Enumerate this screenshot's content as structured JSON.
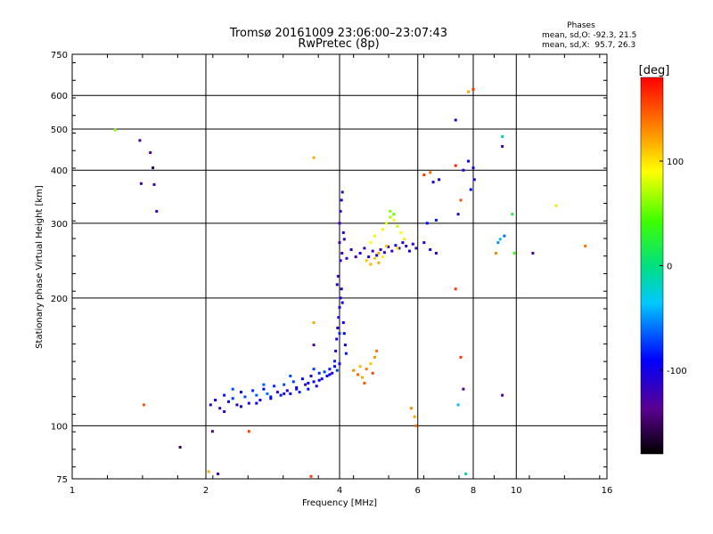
{
  "chart_data": {
    "type": "scatter",
    "title": "Tromsø 20161009 23:06:00–23:07:43",
    "subtitle": "RwPretec (8p)",
    "xlabel": "Frequency [MHz]",
    "ylabel": "Stationary phase Virtual Height [km]",
    "xscale": "log",
    "yscale": "log",
    "xlim": [
      1,
      16
    ],
    "ylim": [
      75,
      750
    ],
    "x_ticks": [
      1,
      2,
      4,
      6,
      8,
      10,
      16
    ],
    "y_ticks": [
      75,
      100,
      200,
      300,
      400,
      500,
      600,
      750
    ],
    "grid": true,
    "stats": {
      "heading": "Phases",
      "line_o": "mean, sd,O: -92.3, 21.5",
      "line_x": "mean, sd,X:  95.7, 26.3"
    },
    "colorbar": {
      "label": "[deg]",
      "min": -180,
      "max": 180,
      "ticks": [
        100,
        0,
        -100
      ],
      "tick_labels": [
        "100",
        "0",
        "-100"
      ]
    },
    "series": [
      {
        "points": [
          [
            2.05,
            112,
            -110
          ],
          [
            2.1,
            115,
            -95
          ],
          [
            2.15,
            110,
            -120
          ],
          [
            2.2,
            118,
            -85
          ],
          [
            2.25,
            114,
            -100
          ],
          [
            2.3,
            116,
            -75
          ],
          [
            2.35,
            112,
            -115
          ],
          [
            2.4,
            120,
            -90
          ],
          [
            2.45,
            117,
            -70
          ],
          [
            2.5,
            113,
            -105
          ],
          [
            2.55,
            121,
            -80
          ],
          [
            2.6,
            118,
            -65
          ],
          [
            2.65,
            115,
            -100
          ],
          [
            2.7,
            122,
            -88
          ],
          [
            2.75,
            119,
            -60
          ],
          [
            2.8,
            116,
            -95
          ],
          [
            2.85,
            124,
            -78
          ],
          [
            2.9,
            120,
            -110
          ],
          [
            2.95,
            118,
            -85
          ],
          [
            3.0,
            125,
            -70
          ],
          [
            3.05,
            121,
            -100
          ],
          [
            3.1,
            119,
            -90
          ],
          [
            3.15,
            127,
            -75
          ],
          [
            3.2,
            123,
            -105
          ],
          [
            3.25,
            120,
            -80
          ],
          [
            3.3,
            129,
            -95
          ],
          [
            3.35,
            125,
            -115
          ],
          [
            3.4,
            122,
            -85
          ],
          [
            3.45,
            131,
            -100
          ],
          [
            3.5,
            127,
            -90
          ],
          [
            3.55,
            124,
            -108
          ],
          [
            3.6,
            133,
            -80
          ],
          [
            3.65,
            129,
            -95
          ],
          [
            3.7,
            134,
            -72
          ],
          [
            3.75,
            131,
            -100
          ],
          [
            3.8,
            136,
            -85
          ],
          [
            3.85,
            133,
            -110
          ],
          [
            3.9,
            138,
            -90
          ],
          [
            3.95,
            135,
            -75
          ],
          [
            4.0,
            140,
            -100
          ],
          [
            2.2,
            108,
            -120
          ],
          [
            2.4,
            111,
            -100
          ],
          [
            2.6,
            113,
            -90
          ],
          [
            2.8,
            117,
            -85
          ],
          [
            3.0,
            119,
            -100
          ],
          [
            3.2,
            122,
            -95
          ],
          [
            3.4,
            126,
            -88
          ],
          [
            3.6,
            128,
            -100
          ],
          [
            3.8,
            132,
            -92
          ],
          [
            2.3,
            122,
            -70
          ],
          [
            2.7,
            125,
            -65
          ],
          [
            3.1,
            131,
            -70
          ],
          [
            3.5,
            136,
            -75
          ],
          [
            3.9,
            142,
            -80
          ],
          [
            3.92,
            150,
            -100
          ],
          [
            3.94,
            160,
            -95
          ],
          [
            3.96,
            170,
            -105
          ],
          [
            3.98,
            180,
            -100
          ],
          [
            4.0,
            190,
            -110
          ],
          [
            4.02,
            200,
            -105
          ],
          [
            4.04,
            210,
            -115
          ],
          [
            4.06,
            195,
            -100
          ],
          [
            4.08,
            175,
            -95
          ],
          [
            4.1,
            165,
            -90
          ],
          [
            4.12,
            155,
            -100
          ],
          [
            4.14,
            148,
            -85
          ],
          [
            3.95,
            215,
            -110
          ],
          [
            3.97,
            225,
            -120
          ],
          [
            4.0,
            165,
            -80
          ],
          [
            4.3,
            135,
            130
          ],
          [
            4.4,
            132,
            145
          ],
          [
            4.5,
            130,
            120
          ],
          [
            4.6,
            136,
            135
          ],
          [
            4.7,
            140,
            110
          ],
          [
            4.8,
            145,
            125
          ],
          [
            4.85,
            150,
            140
          ],
          [
            4.55,
            126,
            150
          ],
          [
            4.45,
            138,
            115
          ],
          [
            4.75,
            133,
            155
          ],
          [
            4.05,
            255,
            -120
          ],
          [
            4.15,
            248,
            -115
          ],
          [
            4.25,
            260,
            -110
          ],
          [
            4.35,
            250,
            -125
          ],
          [
            4.45,
            255,
            -105
          ],
          [
            4.55,
            262,
            -120
          ],
          [
            4.65,
            250,
            -110
          ],
          [
            4.75,
            258,
            -115
          ],
          [
            4.85,
            252,
            -100
          ],
          [
            4.95,
            260,
            -120
          ],
          [
            5.05,
            256,
            -110
          ],
          [
            5.15,
            264,
            -105
          ],
          [
            5.25,
            258,
            -115
          ],
          [
            5.35,
            266,
            -100
          ],
          [
            5.45,
            262,
            -110
          ],
          [
            5.55,
            270,
            -105
          ],
          [
            5.65,
            265,
            -115
          ],
          [
            5.75,
            258,
            -100
          ],
          [
            5.85,
            268,
            -110
          ],
          [
            5.95,
            262,
            -120
          ],
          [
            4.0,
            300,
            -120
          ],
          [
            4.02,
            320,
            -115
          ],
          [
            4.04,
            340,
            -110
          ],
          [
            4.06,
            355,
            -120
          ],
          [
            4.08,
            285,
            -105
          ],
          [
            4.1,
            275,
            -115
          ],
          [
            4.0,
            270,
            -125
          ],
          [
            4.02,
            245,
            -110
          ],
          [
            4.6,
            245,
            110
          ],
          [
            4.7,
            240,
            115
          ],
          [
            4.8,
            248,
            105
          ],
          [
            4.9,
            242,
            120
          ],
          [
            5.0,
            250,
            95
          ],
          [
            4.7,
            270,
            90
          ],
          [
            4.8,
            280,
            85
          ],
          [
            5.0,
            290,
            95
          ],
          [
            5.1,
            300,
            80
          ],
          [
            5.2,
            310,
            70
          ],
          [
            5.3,
            305,
            85
          ],
          [
            5.4,
            295,
            75
          ],
          [
            5.5,
            285,
            90
          ],
          [
            5.6,
            275,
            100
          ],
          [
            5.2,
            320,
            60
          ],
          [
            5.3,
            315,
            50
          ],
          [
            5.1,
            265,
            110
          ],
          [
            5.4,
            262,
            100
          ],
          [
            4.9,
            255,
            120
          ],
          [
            6.2,
            270,
            -110
          ],
          [
            6.4,
            260,
            -100
          ],
          [
            6.6,
            255,
            -115
          ],
          [
            6.3,
            300,
            -90
          ],
          [
            6.6,
            305,
            -85
          ],
          [
            6.7,
            380,
            -100
          ],
          [
            7.4,
            315,
            -110
          ],
          [
            7.6,
            400,
            -105
          ],
          [
            7.8,
            420,
            -95
          ],
          [
            8.0,
            405,
            -100
          ],
          [
            8.05,
            380,
            -110
          ],
          [
            7.9,
            360,
            -90
          ],
          [
            6.5,
            375,
            -100
          ],
          [
            6.2,
            390,
            160
          ],
          [
            6.4,
            395,
            140
          ],
          [
            7.3,
            410,
            170
          ],
          [
            7.5,
            340,
            150
          ],
          [
            7.3,
            525,
            -110
          ],
          [
            7.8,
            612,
            120
          ],
          [
            8.0,
            620,
            165
          ],
          [
            9.3,
            480,
            -20
          ],
          [
            9.3,
            455,
            -130
          ],
          [
            9.2,
            275,
            -40
          ],
          [
            9.4,
            280,
            -60
          ],
          [
            9.1,
            270,
            -50
          ],
          [
            9.0,
            255,
            130
          ],
          [
            9.8,
            315,
            20
          ],
          [
            9.9,
            255,
            40
          ],
          [
            10.9,
            255,
            -130
          ],
          [
            12.3,
            330,
            100
          ],
          [
            14.3,
            265,
            140
          ],
          [
            7.3,
            210,
            160
          ],
          [
            7.5,
            145,
            160
          ],
          [
            7.6,
            122,
            -140
          ],
          [
            7.4,
            112,
            -40
          ],
          [
            9.3,
            118,
            -140
          ],
          [
            5.8,
            110,
            130
          ],
          [
            5.9,
            105,
            120
          ],
          [
            5.95,
            100,
            140
          ],
          [
            3.5,
            175,
            120
          ],
          [
            3.5,
            155,
            -130
          ],
          [
            3.5,
            428,
            120
          ],
          [
            1.25,
            497,
            60
          ],
          [
            1.42,
            470,
            -130
          ],
          [
            1.5,
            440,
            -130
          ],
          [
            1.52,
            405,
            -160
          ],
          [
            1.43,
            372,
            -120
          ],
          [
            1.53,
            370,
            -120
          ],
          [
            1.55,
            320,
            -120
          ],
          [
            1.45,
            112,
            150
          ],
          [
            1.75,
            89,
            -150
          ],
          [
            2.07,
            97,
            -140
          ],
          [
            2.5,
            97,
            160
          ],
          [
            2.03,
            78,
            120
          ],
          [
            2.13,
            77,
            -120
          ],
          [
            3.45,
            76,
            160
          ],
          [
            7.7,
            77,
            -10
          ]
        ]
      }
    ]
  }
}
